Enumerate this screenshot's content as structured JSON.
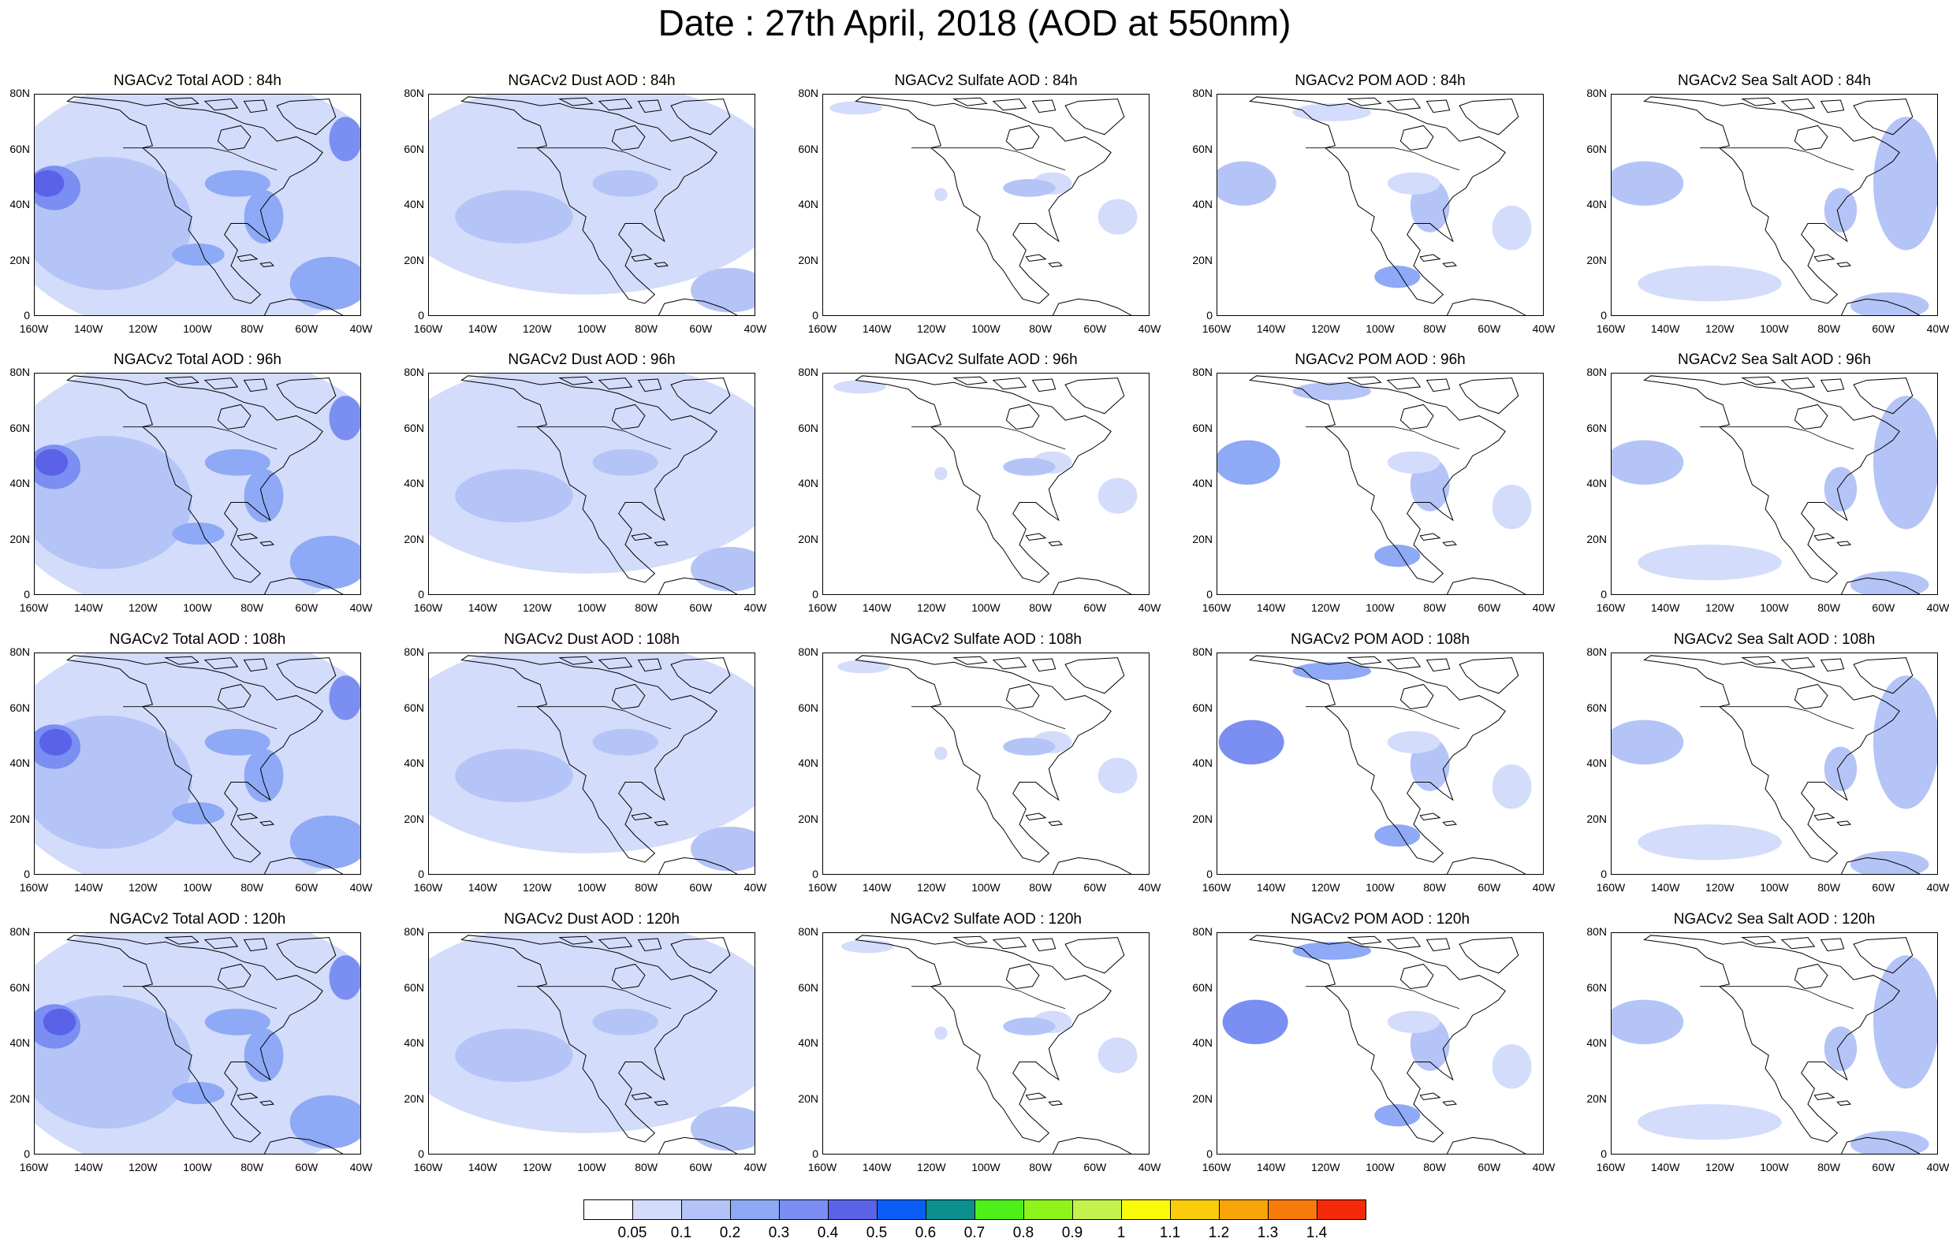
{
  "title": "Date : 27th April, 2018 (AOD at 550nm)",
  "panels": [
    [
      "NGACv2 Total AOD : 84h",
      "NGACv2 Dust AOD : 84h",
      "NGACv2 Sulfate AOD : 84h",
      "NGACv2 POM AOD : 84h",
      "NGACv2 Sea Salt AOD : 84h"
    ],
    [
      "NGACv2 Total AOD : 96h",
      "NGACv2 Dust AOD : 96h",
      "NGACv2 Sulfate AOD : 96h",
      "NGACv2 POM AOD : 96h",
      "NGACv2 Sea Salt AOD : 96h"
    ],
    [
      "NGACv2 Total AOD : 108h",
      "NGACv2 Dust AOD : 108h",
      "NGACv2 Sulfate AOD : 108h",
      "NGACv2 POM AOD : 108h",
      "NGACv2 Sea Salt AOD : 108h"
    ],
    [
      "NGACv2 Total AOD : 120h",
      "NGACv2 Dust AOD : 120h",
      "NGACv2 Sulfate AOD : 120h",
      "NGACv2 POM AOD : 120h",
      "NGACv2 Sea Salt  AOD : 120h"
    ]
  ],
  "map": {
    "lon_range": [
      -160,
      -40
    ],
    "lat_range": [
      0,
      80
    ],
    "x_ticks": [
      "160W",
      "140W",
      "120W",
      "100W",
      "80W",
      "60W",
      "40W"
    ],
    "y_ticks": [
      "80N",
      "60N",
      "40N",
      "20N",
      "0"
    ]
  },
  "colorbar": {
    "colors": [
      "#ffffff",
      "#d3dcfa",
      "#b5c4f7",
      "#8ea9f5",
      "#7b8ef2",
      "#5a63e8",
      "#0a5ef5",
      "#0c8f8f",
      "#4ef01a",
      "#8ef41a",
      "#c4f24a",
      "#fafa0a",
      "#facc0a",
      "#f9a50a",
      "#f87a0a",
      "#f52a0a"
    ],
    "labels": [
      "0.05",
      "0.1",
      "0.2",
      "0.3",
      "0.4",
      "0.5",
      "0.6",
      "0.7",
      "0.8",
      "0.9",
      "1",
      "1.1",
      "1.2",
      "1.3",
      "1.4"
    ]
  }
}
